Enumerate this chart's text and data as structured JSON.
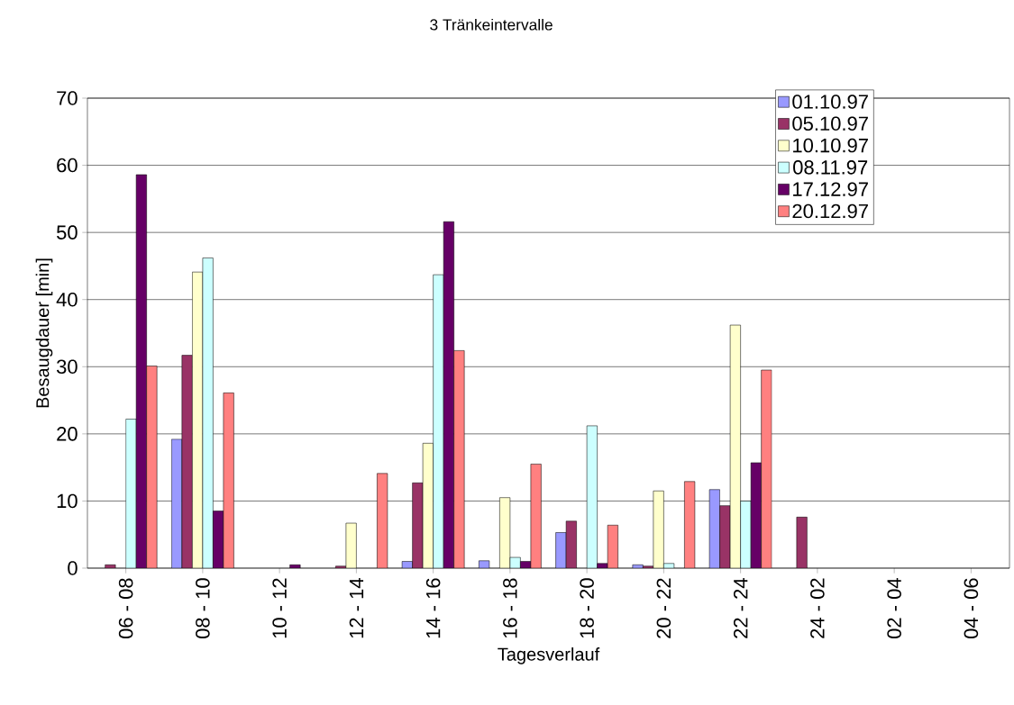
{
  "chart_data": {
    "type": "bar",
    "title": "3 Tränkeintervalle",
    "xlabel": "Tagesverlauf",
    "ylabel": "Besaugdauer [min]",
    "categories": [
      "06 - 08",
      "08 - 10",
      "10 - 12",
      "12 - 14",
      "14 - 16",
      "16 - 18",
      "18 - 20",
      "20 - 22",
      "22 - 24",
      "24 - 02",
      "02 - 04",
      "04 - 06"
    ],
    "series": [
      {
        "name": "01.10.97",
        "color": "#9999ff",
        "values": [
          null,
          19.2,
          null,
          null,
          1,
          1.1,
          5.3,
          0.5,
          11.7,
          null,
          null,
          null
        ]
      },
      {
        "name": "05.10.97",
        "color": "#993366",
        "values": [
          0.5,
          31.7,
          null,
          0.3,
          12.7,
          null,
          7,
          0.3,
          9.3,
          7.6,
          null,
          null
        ]
      },
      {
        "name": "10.10.97",
        "color": "#ffffcc",
        "values": [
          null,
          44.1,
          null,
          6.7,
          18.6,
          10.5,
          null,
          11.5,
          36.2,
          null,
          null,
          null
        ]
      },
      {
        "name": "08.11.97",
        "color": "#ccffff",
        "values": [
          22.2,
          46.2,
          null,
          null,
          43.7,
          1.6,
          21.2,
          0.7,
          10,
          null,
          null,
          null
        ]
      },
      {
        "name": "17.12.97",
        "color": "#660066",
        "values": [
          58.6,
          8.5,
          0.5,
          null,
          51.6,
          1,
          0.7,
          null,
          15.7,
          null,
          null,
          null
        ]
      },
      {
        "name": "20.12.97",
        "color": "#ff8080",
        "values": [
          30.1,
          26.1,
          null,
          14.1,
          32.4,
          15.5,
          6.4,
          12.9,
          29.5,
          null,
          null,
          null
        ]
      }
    ],
    "ylim": [
      0,
      70
    ],
    "yticks": [
      0,
      10,
      20,
      30,
      40,
      50,
      60,
      70
    ],
    "grid": "y",
    "legend": "top right"
  }
}
